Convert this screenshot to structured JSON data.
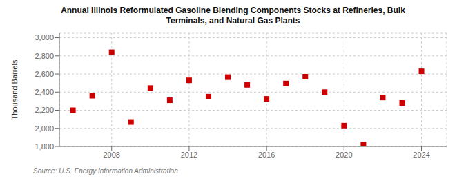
{
  "chart_data": {
    "type": "scatter",
    "title": "Annual Illinois Reformulated Gasoline Blending Components Stocks at Refineries, Bulk\nTerminals, and Natural Gas Plants",
    "ylabel": "Thousand Barrels",
    "annotation": "Source: U.S. Energy Information Administration",
    "x": [
      2006,
      2007,
      2008,
      2009,
      2010,
      2011,
      2012,
      2013,
      2014,
      2015,
      2016,
      2017,
      2018,
      2019,
      2020,
      2021,
      2022,
      2023,
      2024
    ],
    "values": [
      2200,
      2360,
      2840,
      2070,
      2445,
      2310,
      2530,
      2350,
      2565,
      2480,
      2325,
      2495,
      2570,
      2400,
      2030,
      1820,
      2340,
      2280,
      2630
    ],
    "xlim": [
      2005.3,
      2025.3
    ],
    "ylim": [
      1800,
      3050
    ],
    "xticks": [
      2008,
      2012,
      2016,
      2020,
      2024
    ],
    "yticks": [
      {
        "value": 1800,
        "label": "1,800"
      },
      {
        "value": 2000,
        "label": "2,000"
      },
      {
        "value": 2200,
        "label": "2,200"
      },
      {
        "value": 2400,
        "label": "2,400"
      },
      {
        "value": 2600,
        "label": "2,600"
      },
      {
        "value": 2800,
        "label": "2,800"
      },
      {
        "value": 3000,
        "label": "3,000"
      }
    ],
    "color": "#cc0000",
    "marker": "square",
    "grid": true
  }
}
